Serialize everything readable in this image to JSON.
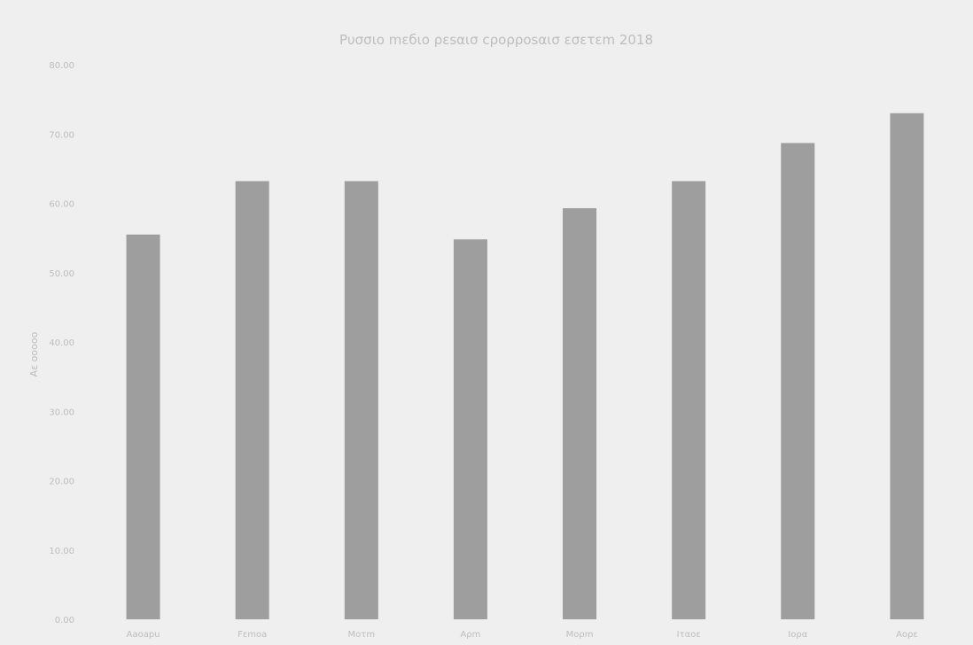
{
  "chart_data": {
    "type": "bar",
    "title": "Ρυσσιο mεбιο ρεsαισ cρορροsαισ εσετεm 2018",
    "ylabel": "Αε οοοοο",
    "xlabel": "",
    "categories": [
      "Αaoapu",
      "Fεmoa",
      "Mοτm",
      "Αρm",
      "Μορm",
      "Ιταοε",
      "Ιορα",
      "Αορε"
    ],
    "values": [
      55.5,
      63.2,
      63.2,
      54.8,
      59.3,
      63.2,
      68.7,
      73.0
    ],
    "ylim": [
      0,
      80
    ],
    "yticks": [
      0,
      10,
      20,
      30,
      40,
      50,
      60,
      70,
      80
    ],
    "ytick_labels": [
      "0.00",
      "10.00",
      "20.00",
      "30.00",
      "40.00",
      "50.00",
      "60.00",
      "70.00",
      "80.00"
    ],
    "grid": false,
    "legend": "none",
    "colors": {
      "background": "#efefef",
      "bar": "#9e9e9e",
      "text": "#bdbdbd"
    }
  }
}
